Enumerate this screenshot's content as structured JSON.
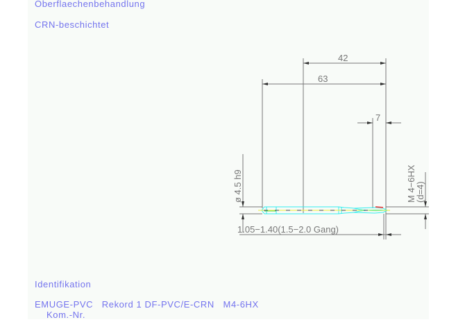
{
  "header": {
    "label_surface": "Oberflaechenbehandlung",
    "surface_value": "CRN-beschichtet"
  },
  "footer": {
    "label_ident": "Identifikation",
    "ident_value": "EMUGE-PVC   Rekord 1 DF-PVC/E-CRN   M4-6HX",
    "kom_label": "Kom.-Nr."
  },
  "drawing": {
    "dim_length_thread": "42",
    "dim_total_length": "63",
    "dim_chamfer": "7",
    "dim_shank": "ø 4.5 h9",
    "dim_thread": "M  4−6HX",
    "dim_thread_d": "(d=4)",
    "dim_core": "1.05−1.40(1.5−2.0 Gang)",
    "colors": {
      "dimension": "#777777",
      "tool_outline": "#33eeee",
      "center_line": "#eeee33",
      "chamfer": "#ee5555",
      "text": "#7373ee"
    }
  }
}
